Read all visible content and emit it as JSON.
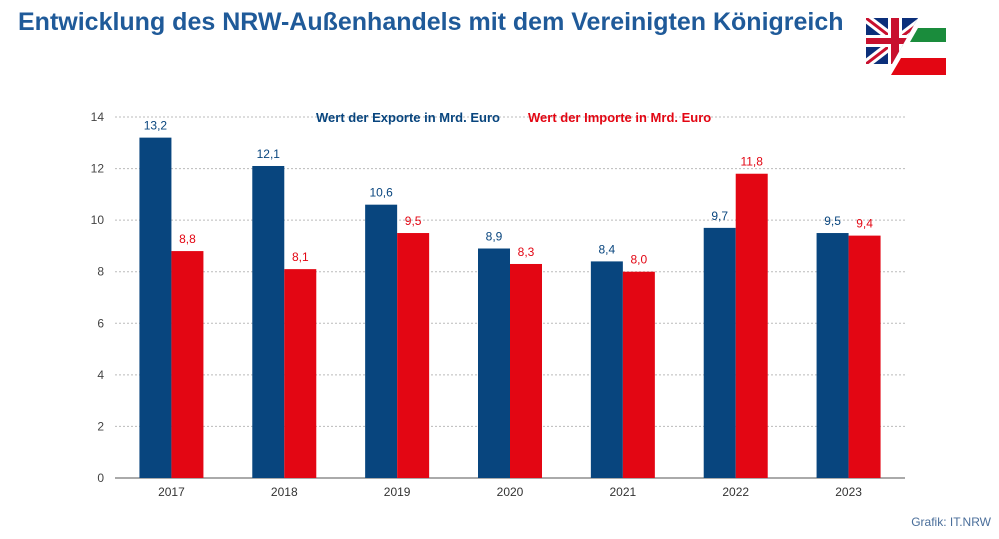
{
  "title": "Entwicklung des NRW-Außenhandels mit dem Vereinigten Königreich",
  "source": "Grafik: IT.NRW",
  "flag_icon": "uk-nrw-flag-icon",
  "colors": {
    "exports": "#08457e",
    "imports": "#e30613",
    "title": "#1f5a99",
    "grid": "#bbbbbb",
    "axis_text": "#444444"
  },
  "chart_data": {
    "type": "bar",
    "categories": [
      "2017",
      "2018",
      "2019",
      "2020",
      "2021",
      "2022",
      "2023"
    ],
    "series": [
      {
        "name": "Wert der Exporte in Mrd. Euro",
        "values": [
          13.2,
          12.1,
          10.6,
          8.9,
          8.4,
          9.7,
          9.5
        ],
        "labels": [
          "13,2",
          "12,1",
          "10,6",
          "8,9",
          "8,4",
          "9,7",
          "9,5"
        ]
      },
      {
        "name": "Wert der Importe in Mrd. Euro",
        "values": [
          8.8,
          8.1,
          9.5,
          8.3,
          8.0,
          11.8,
          9.4
        ],
        "labels": [
          "8,8",
          "8,1",
          "9,5",
          "8,3",
          "8,0",
          "11,8",
          "9,4"
        ]
      }
    ],
    "ylim": [
      0,
      14
    ],
    "yticks": [
      0,
      2,
      4,
      6,
      8,
      10,
      12,
      14
    ],
    "grid": true,
    "legend_placement": "top-center"
  }
}
